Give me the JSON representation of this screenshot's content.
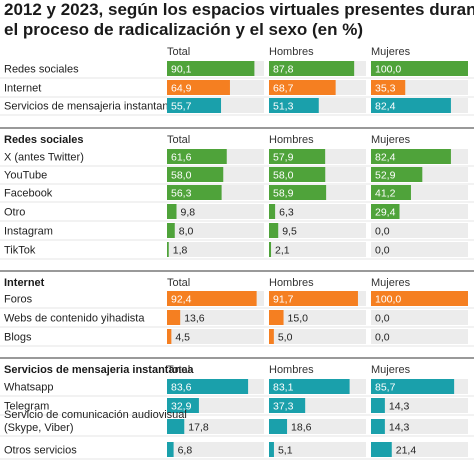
{
  "title_lines": [
    "2012 y 2023, según los espacios virtuales presentes durante",
    "el proceso de radicalización y el sexo (en %)"
  ],
  "colors": {
    "green": "#4fa33a",
    "orange": "#f57f21",
    "teal": "#1aa0ab",
    "track": "#ececec",
    "divider": "#333333",
    "gridline": "#cccccc"
  },
  "chart_data": {
    "type": "bar",
    "orientation": "horizontal",
    "columns": [
      "Total",
      "Hombres",
      "Mujeres"
    ],
    "xlim": [
      0,
      100
    ],
    "sections": [
      {
        "heading": "",
        "color": "#4fa33a",
        "rows": [
          {
            "label": "Redes sociales",
            "values": [
              90.1,
              87.8,
              100.0
            ],
            "labels": [
              "90,1",
              "87,8",
              "100,0"
            ],
            "color": "#4fa33a"
          },
          {
            "label": "Internet",
            "values": [
              64.9,
              68.7,
              35.3
            ],
            "labels": [
              "64,9",
              "68,7",
              "35,3"
            ],
            "color": "#f57f21"
          },
          {
            "label": "Servicios de mensajeria instantanea",
            "values": [
              55.7,
              51.3,
              82.4
            ],
            "labels": [
              "55,7",
              "51,3",
              "82,4"
            ],
            "color": "#1aa0ab"
          }
        ]
      },
      {
        "heading": "Redes sociales",
        "color": "#4fa33a",
        "rows": [
          {
            "label": "X (antes Twitter)",
            "values": [
              61.6,
              57.9,
              82.4
            ],
            "labels": [
              "61,6",
              "57,9",
              "82,4"
            ]
          },
          {
            "label": "YouTube",
            "values": [
              58.0,
              58.0,
              52.9
            ],
            "labels": [
              "58,0",
              "58,0",
              "52,9"
            ]
          },
          {
            "label": "Facebook",
            "values": [
              56.3,
              58.9,
              41.2
            ],
            "labels": [
              "56,3",
              "58,9",
              "41,2"
            ]
          },
          {
            "label": "Otro",
            "values": [
              9.8,
              6.3,
              29.4
            ],
            "labels": [
              "9,8",
              "6,3",
              "29,4"
            ]
          },
          {
            "label": "Instagram",
            "values": [
              8.0,
              9.5,
              0.0
            ],
            "labels": [
              "8,0",
              "9,5",
              "0,0"
            ]
          },
          {
            "label": "TikTok",
            "values": [
              1.8,
              2.1,
              0.0
            ],
            "labels": [
              "1,8",
              "2,1",
              "0,0"
            ]
          }
        ]
      },
      {
        "heading": "Internet",
        "color": "#f57f21",
        "rows": [
          {
            "label": "Foros",
            "values": [
              92.4,
              91.7,
              100.0
            ],
            "labels": [
              "92,4",
              "91,7",
              "100,0"
            ]
          },
          {
            "label": "Webs de contenido yihadista",
            "values": [
              13.6,
              15.0,
              0.0
            ],
            "labels": [
              "13,6",
              "15,0",
              "0,0"
            ]
          },
          {
            "label": "Blogs",
            "values": [
              4.5,
              5.0,
              0.0
            ],
            "labels": [
              "4,5",
              "5,0",
              "0,0"
            ]
          }
        ]
      },
      {
        "heading": "Servicios de mensajeria instantanea",
        "color": "#1aa0ab",
        "rows": [
          {
            "label": "Whatsapp",
            "values": [
              83.6,
              83.1,
              85.7
            ],
            "labels": [
              "83,6",
              "83,1",
              "85,7"
            ]
          },
          {
            "label": "Telegram",
            "values": [
              32.9,
              37.3,
              14.3
            ],
            "labels": [
              "32,9",
              "37,3",
              "14,3"
            ]
          },
          {
            "label": [
              "Servicio de comunicación audiovisual",
              "(Skype, Viber)"
            ],
            "values": [
              17.8,
              18.6,
              14.3
            ],
            "labels": [
              "17,8",
              "18,6",
              "14,3"
            ]
          },
          {
            "label": "Otros servicios",
            "values": [
              6.8,
              5.1,
              21.4
            ],
            "labels": [
              "6,8",
              "5,1",
              "21,4"
            ]
          }
        ]
      }
    ]
  }
}
